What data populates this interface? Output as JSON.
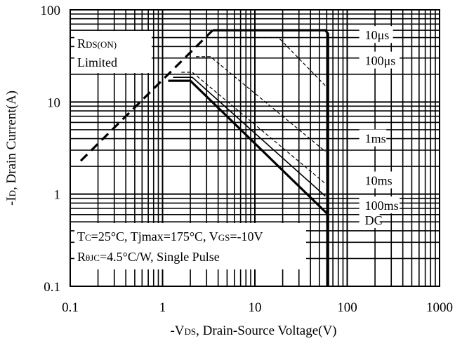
{
  "chart_data": {
    "type": "line",
    "title": "",
    "scale": {
      "x": "log",
      "y": "log"
    },
    "xlim": [
      0.1,
      1000
    ],
    "ylim": [
      0.1,
      100
    ],
    "grid": true,
    "x_tick_labels": [
      "0.1",
      "1",
      "10",
      "100",
      "1000"
    ],
    "y_tick_labels": [
      "0.1",
      "1",
      "10",
      "100"
    ],
    "xlabel": {
      "prefix": "-V",
      "sub": "DS",
      "suffix": ", Drain-Source Voltage(V)"
    },
    "ylabel": {
      "prefix": "-I",
      "sub": "D",
      "suffix": ", Drain Current(A)"
    },
    "limit_label": {
      "line1_main": "R",
      "line1_sub": "DS(ON)",
      "line2": "Limited"
    },
    "conditions": {
      "line1": {
        "t_main": "T",
        "t_sub": "C",
        "t_rest": "=25°C, Tjmax=175°C, V",
        "v_sub": "GS",
        "v_rest": "=-10V"
      },
      "line2": {
        "r_main": "R",
        "r_sub": "θJC",
        "r_rest": "=4.5°C/W, Single Pulse"
      }
    },
    "series": [
      {
        "name": "RDS(ON) Limited",
        "style": "dashed-bold",
        "x": [
          0.13,
          3.5
        ],
        "y": [
          2.3,
          60
        ]
      },
      {
        "name": "10μs",
        "style": "solid-bold",
        "x": [
          3.5,
          58,
          62,
          62
        ],
        "y": [
          60,
          60,
          55,
          0.1
        ]
      },
      {
        "name": "100μs",
        "style": "dashed-thin",
        "x": [
          3.5,
          18,
          58
        ],
        "y": [
          50,
          50,
          15
        ]
      },
      {
        "name": "1ms",
        "style": "dashed-thin",
        "x": [
          2.3,
          3.3,
          58
        ],
        "y": [
          31,
          31,
          2.9
        ]
      },
      {
        "name": "10ms",
        "style": "dashed-thin",
        "x": [
          1.6,
          2.1,
          58
        ],
        "y": [
          21,
          21,
          1.3
        ]
      },
      {
        "name": "100ms",
        "style": "solid-thin",
        "x": [
          1.3,
          2.1,
          58
        ],
        "y": [
          18.5,
          18.5,
          0.95
        ]
      },
      {
        "name": "DC",
        "style": "solid-bold",
        "x": [
          1.15,
          2.0,
          60
        ],
        "y": [
          17,
          17,
          0.62
        ]
      }
    ],
    "series_labels": [
      {
        "text": "10μs",
        "x": 150,
        "y": 53
      },
      {
        "text": "100μs",
        "x": 150,
        "y": 28
      },
      {
        "text": "1ms",
        "x": 150,
        "y": 4.0
      },
      {
        "text": "10ms",
        "x": 150,
        "y": 1.4
      },
      {
        "text": "100ms",
        "x": 150,
        "y": 0.75
      },
      {
        "text": "DC",
        "x": 150,
        "y": 0.52
      }
    ]
  }
}
